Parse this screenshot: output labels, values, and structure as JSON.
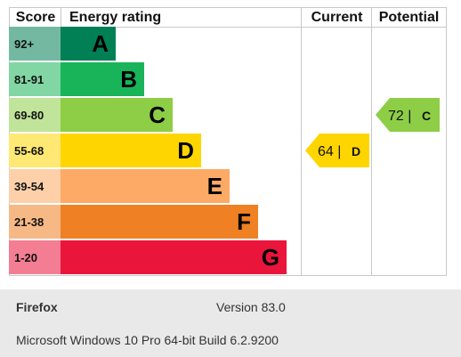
{
  "chart_data": {
    "type": "bar",
    "headers": {
      "score": "Score",
      "rating": "Energy rating",
      "current": "Current",
      "potential": "Potential"
    },
    "bands": [
      {
        "score": "92+",
        "letter": "A",
        "min": 92,
        "max": 100,
        "color": "#008054"
      },
      {
        "score": "81-91",
        "letter": "B",
        "min": 81,
        "max": 91,
        "color": "#19b459"
      },
      {
        "score": "69-80",
        "letter": "C",
        "min": 69,
        "max": 80,
        "color": "#8dce46"
      },
      {
        "score": "55-68",
        "letter": "D",
        "min": 55,
        "max": 68,
        "color": "#ffd500"
      },
      {
        "score": "39-54",
        "letter": "E",
        "min": 39,
        "max": 54,
        "color": "#fcaa65"
      },
      {
        "score": "21-38",
        "letter": "F",
        "min": 21,
        "max": 38,
        "color": "#ef8023"
      },
      {
        "score": "1-20",
        "letter": "G",
        "min": 1,
        "max": 20,
        "color": "#e9153b"
      }
    ],
    "current": {
      "value": 64,
      "letter": "D",
      "label": "64 |",
      "color": "#ffd500"
    },
    "potential": {
      "value": 72,
      "letter": "C",
      "label": "72 |",
      "color": "#8dce46"
    }
  },
  "footer": {
    "browser": "Firefox",
    "version": "Version 83.0",
    "os": "Microsoft Windows 10 Pro 64-bit Build 6.2.9200"
  }
}
